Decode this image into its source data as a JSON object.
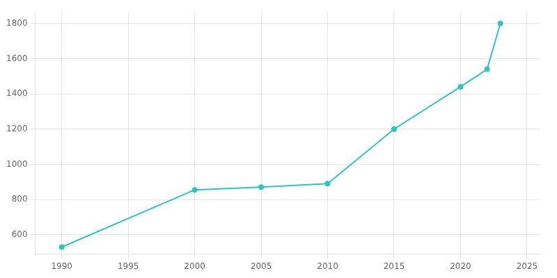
{
  "chart_data": {
    "type": "line",
    "x": [
      1990,
      2000,
      2005,
      2010,
      2015,
      2020,
      2022,
      2023
    ],
    "values": [
      530,
      855,
      870,
      890,
      1200,
      1440,
      1540,
      1800
    ],
    "color": "#2ec4c4",
    "marker": "circle",
    "xlim": [
      1988,
      2026
    ],
    "ylim": [
      490,
      1870
    ],
    "xticks": [
      1990,
      1995,
      2000,
      2005,
      2010,
      2015,
      2020,
      2025
    ],
    "yticks": [
      600,
      800,
      1000,
      1200,
      1400,
      1600,
      1800
    ],
    "grid": true
  }
}
